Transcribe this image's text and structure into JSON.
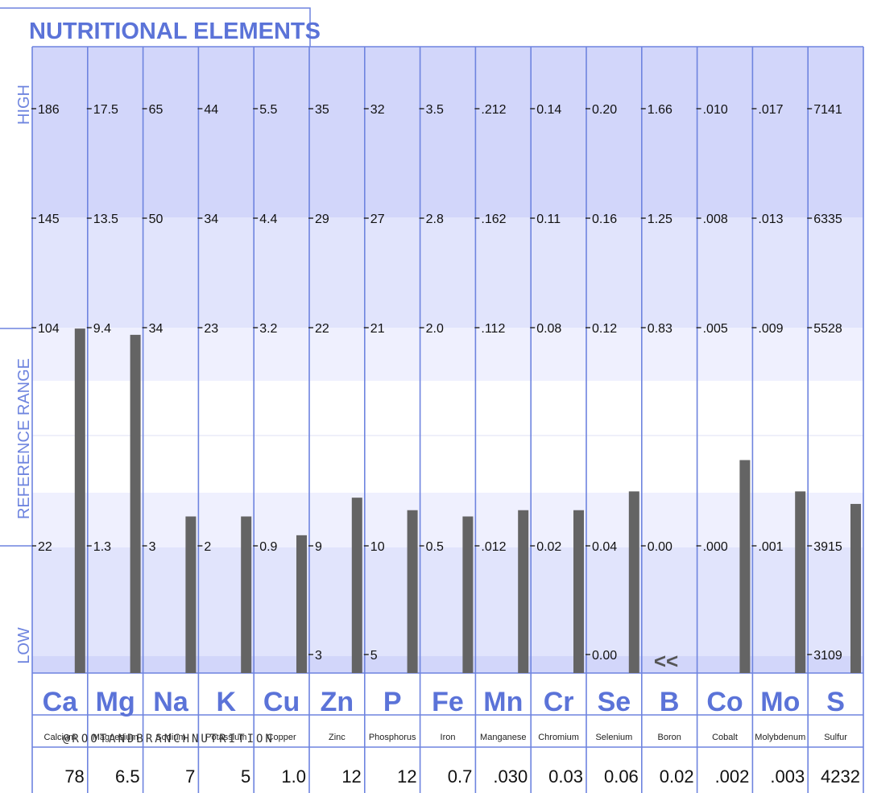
{
  "title": "NUTRITIONAL ELEMENTS",
  "side_labels": {
    "high": "HIGH",
    "reference": "REFERENCE  RANGE",
    "low": "LOW"
  },
  "watermark": "@ROOTANDBRANCHNUTRITION",
  "low_indicator": "<<",
  "colors": {
    "accent": "#5b73d8",
    "line": "#6e84df",
    "band_dark": "#d2d6fa",
    "band_mid": "#e1e4fc",
    "band_light": "#eff0fe",
    "bar": "#646464"
  },
  "chart_data": {
    "type": "bar",
    "title": "NUTRITIONAL ELEMENTS",
    "y_scale": "per-element reference scale (LOW / REFERENCE RANGE / HIGH)",
    "categories": [
      "Ca",
      "Mg",
      "Na",
      "K",
      "Cu",
      "Zn",
      "P",
      "Fe",
      "Mn",
      "Cr",
      "Se",
      "B",
      "Co",
      "Mo",
      "S"
    ],
    "names": [
      "Calcium",
      "Magnesium",
      "Sodium",
      "Potassium",
      "Copper",
      "Zinc",
      "Phosphorus",
      "Iron",
      "Manganese",
      "Chromium",
      "Selenium",
      "Boron",
      "Cobalt",
      "Molybdenum",
      "Sulfur"
    ],
    "values": [
      "78",
      "6.5",
      "7",
      "5",
      "1.0",
      "12",
      "12",
      "0.7",
      ".030",
      "0.03",
      "0.06",
      "0.02",
      ".002",
      ".003",
      "4232"
    ],
    "bar_levels_pct": [
      55,
      54,
      25,
      25,
      22,
      28,
      26,
      25,
      26,
      26,
      29,
      0,
      34,
      29,
      27
    ],
    "ticks": [
      [
        "186",
        "145",
        "104",
        "22",
        ""
      ],
      [
        "17.5",
        "13.5",
        "9.4",
        "1.3",
        ""
      ],
      [
        "65",
        "50",
        "34",
        "3",
        ""
      ],
      [
        "44",
        "34",
        "23",
        "2",
        ""
      ],
      [
        "5.5",
        "4.4",
        "3.2",
        "0.9",
        ""
      ],
      [
        "35",
        "29",
        "22",
        "9",
        "3"
      ],
      [
        "32",
        "27",
        "21",
        "10",
        "5"
      ],
      [
        "3.5",
        "2.8",
        "2.0",
        "0.5",
        ""
      ],
      [
        ".212",
        ".162",
        ".112",
        ".012",
        ""
      ],
      [
        "0.14",
        "0.11",
        "0.08",
        "0.02",
        ""
      ],
      [
        "0.20",
        "0.16",
        "0.12",
        "0.04",
        "0.00"
      ],
      [
        "1.66",
        "1.25",
        "0.83",
        "0.00",
        ""
      ],
      [
        ".010",
        ".008",
        ".005",
        ".000",
        ""
      ],
      [
        ".017",
        ".013",
        ".009",
        ".001",
        ""
      ],
      [
        "7141",
        "6335",
        "5528",
        "3915",
        "3109"
      ]
    ]
  }
}
